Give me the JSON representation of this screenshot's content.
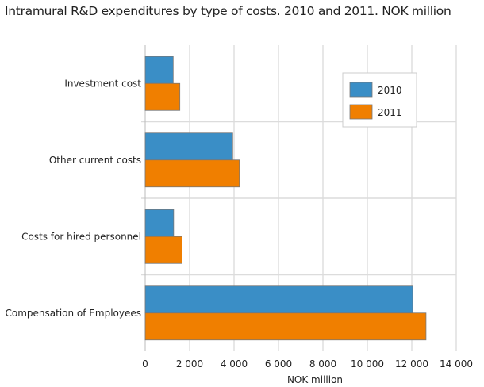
{
  "chart_data": {
    "type": "bar",
    "orientation": "horizontal",
    "title": "Intramural R&D expenditures by type of costs. 2010 and 2011. NOK million",
    "xlabel": "NOK million",
    "ylabel": "",
    "xlim": [
      0,
      14000
    ],
    "xticks": [
      0,
      2000,
      4000,
      6000,
      8000,
      10000,
      12000,
      14000
    ],
    "xtick_labels": [
      "0",
      "2 000",
      "4 000",
      "6 000",
      "8 000",
      "10 000",
      "12 000",
      "14 000"
    ],
    "categories": [
      "Investment cost",
      "Other current costs",
      "Costs for hired personnel",
      "Compensation of Employees"
    ],
    "series": [
      {
        "name": "2010",
        "color": "#3a8ec6",
        "values": [
          1260,
          3940,
          1280,
          12040
        ]
      },
      {
        "name": "2011",
        "color": "#f07f00",
        "values": [
          1560,
          4240,
          1660,
          12640
        ]
      }
    ],
    "grid": true,
    "legend": "top-right"
  }
}
